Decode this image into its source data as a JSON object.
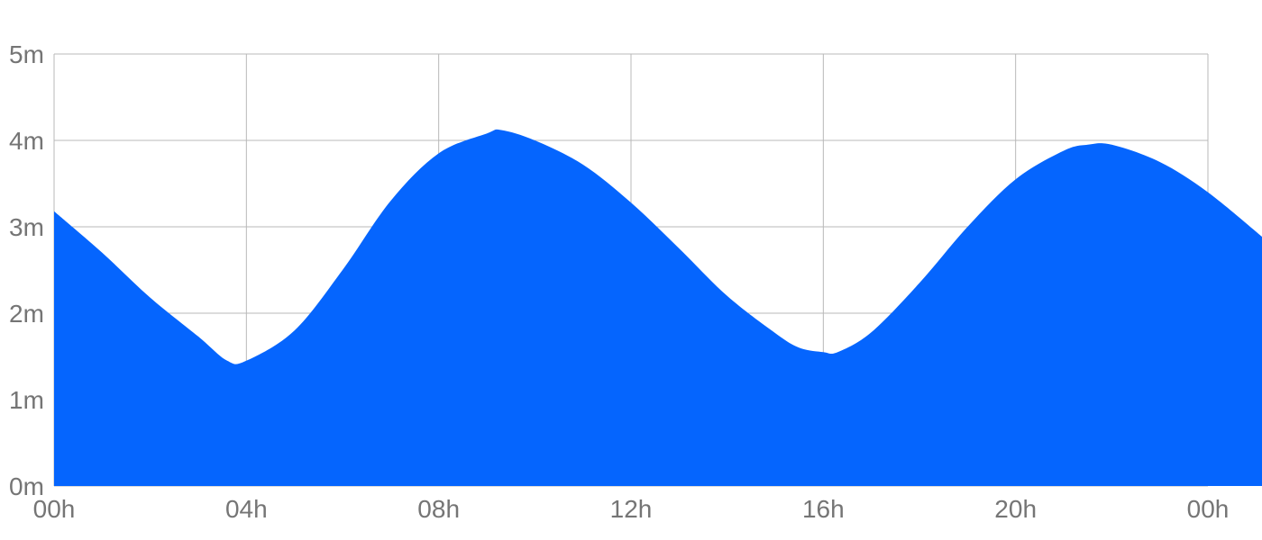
{
  "chart_data": {
    "type": "area",
    "title": "",
    "xlabel": "",
    "ylabel": "",
    "x_tick_labels": [
      "00h",
      "04h",
      "08h",
      "12h",
      "16h",
      "20h",
      "00h"
    ],
    "y_tick_labels": [
      "0m",
      "1m",
      "2m",
      "3m",
      "4m",
      "5m"
    ],
    "y_ticks": [
      0,
      1,
      2,
      3,
      4,
      5
    ],
    "ylim": [
      0,
      5
    ],
    "xlim_hours": [
      0,
      24
    ],
    "grid": true,
    "legend": "none",
    "fill_color": "#0565fe",
    "series": [
      {
        "x_hours": [
          0,
          1,
          2,
          3,
          3.6,
          4,
          5,
          6,
          7,
          8,
          9,
          9.3,
          10,
          11,
          12,
          13,
          14,
          15,
          15.5,
          16,
          16.3,
          17,
          18,
          19,
          20,
          21,
          21.5,
          22,
          23,
          24,
          25.2
        ],
        "values": [
          3.18,
          2.7,
          2.18,
          1.73,
          1.45,
          1.45,
          1.8,
          2.5,
          3.3,
          3.85,
          4.08,
          4.12,
          4.0,
          3.72,
          3.28,
          2.75,
          2.2,
          1.77,
          1.6,
          1.55,
          1.55,
          1.78,
          2.35,
          3.0,
          3.55,
          3.88,
          3.95,
          3.95,
          3.75,
          3.4,
          2.85
        ]
      }
    ]
  }
}
